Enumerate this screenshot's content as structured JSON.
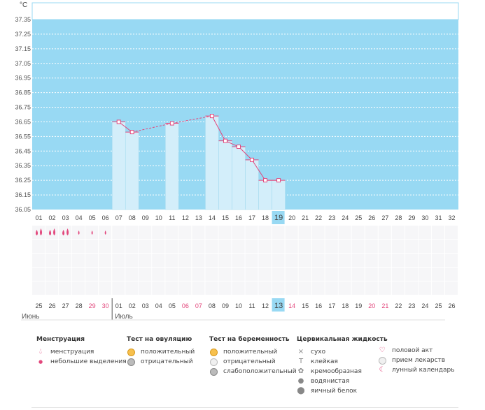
{
  "chart_data": {
    "type": "bar",
    "unit": "°C",
    "ylim": [
      36.05,
      37.35
    ],
    "y_ticks": [
      "37.35",
      "37.25",
      "37.15",
      "37.05",
      "36.95",
      "36.85",
      "36.75",
      "36.65",
      "36.55",
      "36.45",
      "36.35",
      "36.25",
      "36.15",
      "36.05"
    ],
    "cycle_days": [
      "01",
      "02",
      "03",
      "04",
      "05",
      "06",
      "07",
      "08",
      "09",
      "10",
      "11",
      "12",
      "13",
      "14",
      "15",
      "16",
      "17",
      "18",
      "19",
      "20",
      "21",
      "22",
      "23",
      "24",
      "25",
      "26",
      "27",
      "28",
      "29",
      "30",
      "31",
      "32"
    ],
    "temperatures": [
      null,
      null,
      null,
      null,
      null,
      null,
      36.65,
      36.58,
      null,
      null,
      36.64,
      null,
      null,
      36.69,
      36.52,
      36.48,
      36.39,
      36.25,
      36.25,
      null,
      null,
      null,
      null,
      null,
      null,
      null,
      null,
      null,
      null,
      null,
      null,
      null
    ],
    "highlight_day": "19",
    "menstruation": [
      "big",
      "big",
      "big",
      "small",
      "small",
      "small"
    ],
    "calendar_dates": [
      {
        "d": "25",
        "red": false
      },
      {
        "d": "26",
        "red": false
      },
      {
        "d": "27",
        "red": false
      },
      {
        "d": "28",
        "red": false
      },
      {
        "d": "29",
        "red": true
      },
      {
        "d": "30",
        "red": true
      },
      {
        "d": "01",
        "red": false
      },
      {
        "d": "02",
        "red": false
      },
      {
        "d": "03",
        "red": false
      },
      {
        "d": "04",
        "red": false
      },
      {
        "d": "05",
        "red": false
      },
      {
        "d": "06",
        "red": true
      },
      {
        "d": "07",
        "red": true
      },
      {
        "d": "08",
        "red": false
      },
      {
        "d": "09",
        "red": false
      },
      {
        "d": "10",
        "red": false
      },
      {
        "d": "11",
        "red": false
      },
      {
        "d": "12",
        "red": false
      },
      {
        "d": "13",
        "red": false
      },
      {
        "d": "14",
        "red": true
      },
      {
        "d": "15",
        "red": false
      },
      {
        "d": "16",
        "red": false
      },
      {
        "d": "17",
        "red": false
      },
      {
        "d": "18",
        "red": false
      },
      {
        "d": "19",
        "red": false
      },
      {
        "d": "20",
        "red": true
      },
      {
        "d": "21",
        "red": true
      },
      {
        "d": "22",
        "red": false
      },
      {
        "d": "23",
        "red": false
      },
      {
        "d": "24",
        "red": false
      },
      {
        "d": "25",
        "red": false
      },
      {
        "d": "26",
        "red": false
      }
    ],
    "month_june": "Июнь",
    "month_july": "Июль",
    "colors": {
      "plot_bg": "#98d9f3",
      "bar": "#d3eefa",
      "bar_border": "#9fd8ee",
      "line": "#e2477c",
      "highlight": "#98d9f3",
      "grid": "#ffffff"
    }
  },
  "legend": {
    "menstruation": {
      "title": "Менструация",
      "items": [
        {
          "icon": "drop-icon",
          "label": "менструация"
        },
        {
          "icon": "small-drop-icon",
          "label": "небольшие выделения"
        }
      ]
    },
    "ovulation": {
      "title": "Тест на овуляцию",
      "items": [
        {
          "icon": "positive-circle-icon",
          "label": "положительный"
        },
        {
          "icon": "negative-circle-icon",
          "label": "отрицательный"
        }
      ]
    },
    "pregnancy": {
      "title": "Тест на беременность",
      "items": [
        {
          "icon": "positive-circle-icon",
          "label": "положительный"
        },
        {
          "icon": "negative-circle-icon",
          "label": "отрицательный"
        },
        {
          "icon": "weak-positive-circle-icon",
          "label": "слабоположительный"
        }
      ]
    },
    "cervical": {
      "title": "Цервикальная жидкость",
      "items": [
        {
          "icon": "cross-icon",
          "label": "сухо"
        },
        {
          "icon": "sticky-icon",
          "label": "клейкая"
        },
        {
          "icon": "creamy-icon",
          "label": "кремообразная"
        },
        {
          "icon": "watery-icon",
          "label": "водянистая"
        },
        {
          "icon": "eggwhite-icon",
          "label": "яичный белок"
        }
      ]
    },
    "other": {
      "items": [
        {
          "icon": "heart-icon",
          "label": "половой акт"
        },
        {
          "icon": "pill-icon",
          "label": "прием лекарств"
        },
        {
          "icon": "moon-icon",
          "label": "лунный календарь"
        }
      ]
    }
  }
}
